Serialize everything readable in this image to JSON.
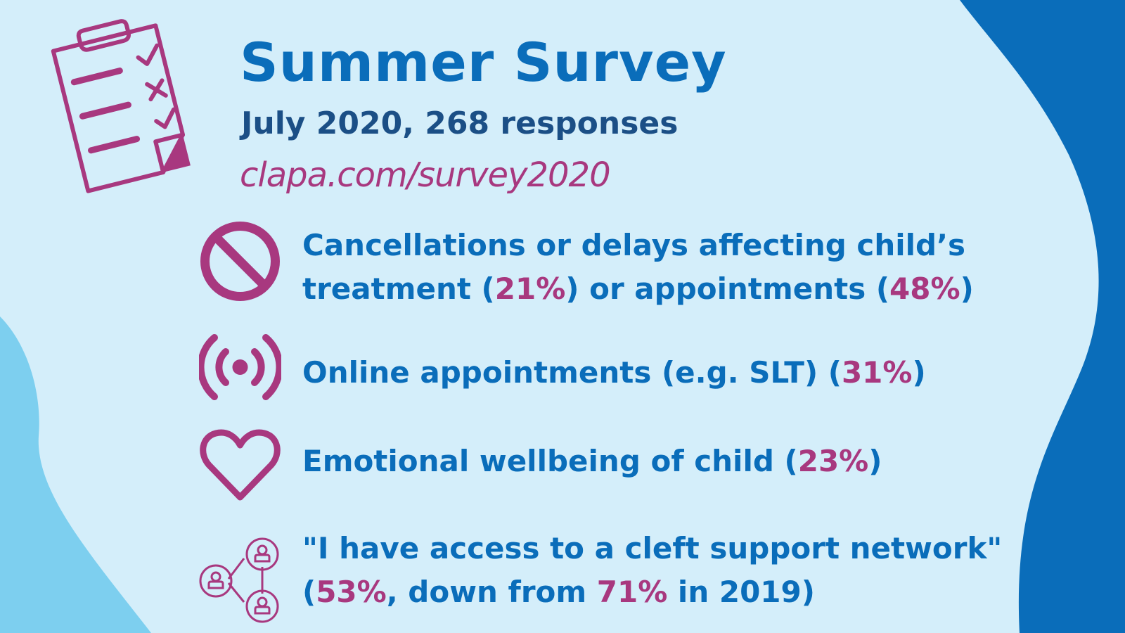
{
  "header": {
    "title": "Summer Survey",
    "subtitle": "July 2020, 268 responses",
    "url": "clapa.com/survey2020"
  },
  "items": [
    {
      "icon": "no-entry-icon",
      "line1": "Cancellations or delays affecting child’s",
      "line2_a": "treatment (",
      "pct1": "21%",
      "line2_b": ") or appointments (",
      "pct2": "48%",
      "line2_c": ")"
    },
    {
      "icon": "broadcast-icon",
      "text_a": "Online appointments (e.g. SLT) (",
      "pct1": "31%",
      "text_b": ")"
    },
    {
      "icon": "heart-icon",
      "text_a": "Emotional wellbeing of child (",
      "pct1": "23%",
      "text_b": ")"
    },
    {
      "icon": "network-icon",
      "line1": "\"I have access to a cleft support network\"",
      "line2_a": "(",
      "pct1": "53%",
      "line2_b": ", down from ",
      "pct2": "71%",
      "line2_c": " in 2019)"
    }
  ],
  "colors": {
    "background": "#d4eefa",
    "dark_blue": "#0a6dba",
    "light_blue": "#7dcfef",
    "magenta": "#a8387f"
  }
}
